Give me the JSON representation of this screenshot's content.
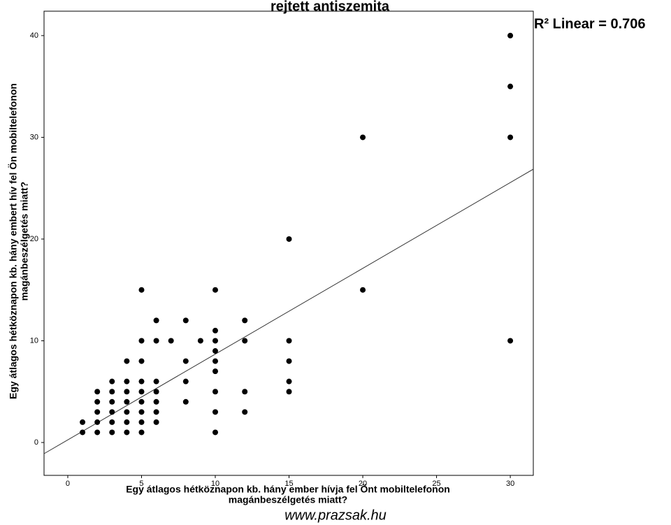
{
  "chart_data": {
    "type": "scatter",
    "title": "rejtett antiszemita",
    "annotation": "R² Linear = 0.706",
    "x_label": [
      "Egy átlagos hétköznapon kb. hány ember hívja fel Önt mobiltelefonon",
      "magánbeszélgetés miatt?"
    ],
    "y_label": [
      "Egy átlagos hétköznapon kb. hány embert hív fel Ön mobiltelefonon",
      "magánbeszélgetés miatt?"
    ],
    "x": [
      1,
      1,
      2,
      2,
      2,
      2,
      2,
      3,
      3,
      3,
      3,
      3,
      3,
      4,
      4,
      4,
      4,
      4,
      4,
      4,
      5,
      5,
      5,
      5,
      5,
      5,
      5,
      5,
      5,
      6,
      6,
      6,
      6,
      6,
      6,
      6,
      7,
      8,
      8,
      8,
      8,
      9,
      10,
      10,
      10,
      10,
      10,
      10,
      10,
      10,
      10,
      12,
      12,
      12,
      12,
      15,
      15,
      15,
      15,
      15,
      20,
      20,
      30,
      30,
      30,
      30
    ],
    "values": [
      2,
      1,
      5,
      4,
      3,
      2,
      1,
      6,
      5,
      4,
      3,
      2,
      1,
      8,
      6,
      5,
      4,
      3,
      2,
      1,
      15,
      10,
      8,
      6,
      5,
      4,
      3,
      2,
      1,
      12,
      10,
      6,
      5,
      4,
      3,
      2,
      10,
      12,
      8,
      6,
      4,
      10,
      15,
      11,
      10,
      9,
      8,
      7,
      5,
      3,
      1,
      12,
      10,
      5,
      3,
      20,
      10,
      8,
      6,
      5,
      30,
      15,
      40,
      35,
      30,
      10
    ],
    "color": "#000000",
    "fit_line": {
      "x": [
        -1.61,
        31.56
      ],
      "y": [
        -1.1,
        26.87
      ]
    },
    "xlim": [
      -1.61,
      31.56
    ],
    "ylim": [
      -3.23,
      42.4
    ],
    "xticks": [
      0,
      5,
      10,
      15,
      20,
      25,
      30
    ],
    "yticks": [
      0,
      10,
      20,
      30,
      40
    ]
  },
  "footer": "www.prazsak.hu"
}
